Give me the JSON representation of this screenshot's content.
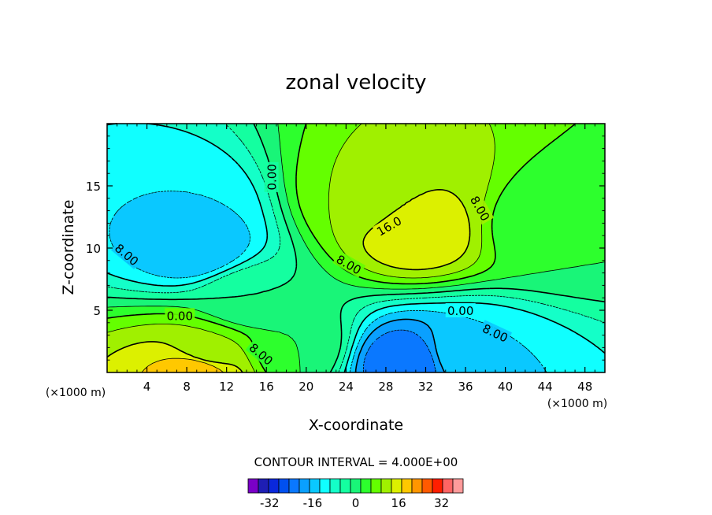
{
  "chart_data": {
    "type": "heatmap",
    "title": "zonal velocity",
    "xlabel": "X-coordinate",
    "ylabel": "Z-coordinate",
    "x_units": "(×1000 m)",
    "y_units": "(×1000 m)",
    "xlim": [
      0,
      50
    ],
    "ylim": [
      0,
      20
    ],
    "x_ticks": [
      4,
      8,
      12,
      16,
      20,
      24,
      28,
      32,
      36,
      40,
      44,
      48
    ],
    "y_ticks": [
      5,
      10,
      15
    ],
    "contour_interval_text": "CONTOUR INTERVAL = 4.000E+00",
    "contour_labels": [
      {
        "text": "0.00",
        "x": 16.5,
        "y": 15.7,
        "angle": -90
      },
      {
        "text": "16.0",
        "x": 28.3,
        "y": 11.8,
        "angle": -30
      },
      {
        "text": "8.00",
        "x": 37.5,
        "y": 13.2,
        "angle": 60
      },
      {
        "text": "8.00",
        "x": 2.0,
        "y": 9.5,
        "angle": 40
      },
      {
        "text": "8.00",
        "x": 24.3,
        "y": 8.7,
        "angle": 30
      },
      {
        "text": "0.00",
        "x": 7.3,
        "y": 4.6,
        "angle": 0
      },
      {
        "text": "0.00",
        "x": 35.5,
        "y": 5.0,
        "angle": 0
      },
      {
        "text": "8.00",
        "x": 39.0,
        "y": 3.2,
        "angle": 25
      },
      {
        "text": "8.00",
        "x": 15.5,
        "y": 1.5,
        "angle": 40
      }
    ],
    "colorbar": {
      "levels": [
        -40,
        -36,
        -32,
        -28,
        -24,
        -20,
        -16,
        -12,
        -8,
        -4,
        0,
        4,
        8,
        12,
        16,
        20,
        24,
        28,
        32,
        36,
        40
      ],
      "colors": [
        "#7a00c8",
        "#1e1eb4",
        "#0a28dc",
        "#0050f0",
        "#0a78ff",
        "#0aa0ff",
        "#0ac8ff",
        "#10ffff",
        "#14ffc8",
        "#14ffa0",
        "#19f578",
        "#2dff2d",
        "#64ff00",
        "#a0f000",
        "#dcf000",
        "#ffc800",
        "#ff9600",
        "#ff5a00",
        "#ff1e00",
        "#ff6464",
        "#ff9b9b"
      ],
      "tick_labels": [
        "-32",
        "-16",
        "0",
        "16",
        "32"
      ],
      "tick_values": [
        -32,
        -16,
        0,
        16,
        32
      ]
    },
    "features": [
      {
        "x": 31,
        "y": 11.5,
        "value": 20
      },
      {
        "x": 31,
        "y": 14,
        "value": 16
      },
      {
        "x": 26,
        "y": 14,
        "value": 12
      },
      {
        "x": 9,
        "y": 10,
        "value": -16
      },
      {
        "x": 8.5,
        "y": 13,
        "value": -12
      },
      {
        "x": 30,
        "y": 0.8,
        "value": -24
      },
      {
        "x": 36,
        "y": 1.5,
        "value": -12
      },
      {
        "x": 9,
        "y": 0.3,
        "value": 24
      },
      {
        "x": 10,
        "y": 1.6,
        "value": 12
      },
      {
        "x": 19,
        "y": 2,
        "value": 4
      },
      {
        "x": 44,
        "y": 12,
        "value": 4
      },
      {
        "x": 14,
        "y": 6,
        "value": 0
      }
    ]
  }
}
